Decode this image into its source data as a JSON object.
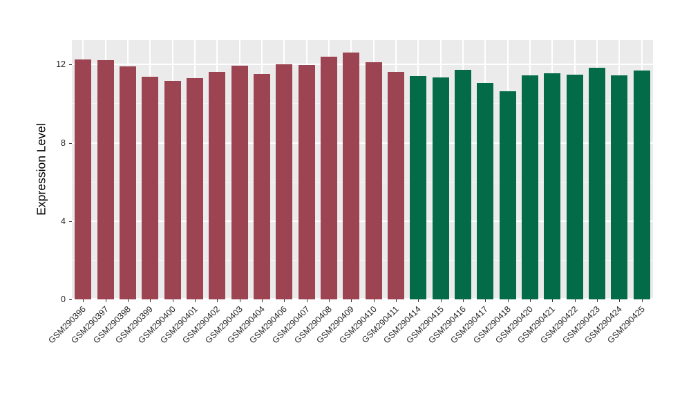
{
  "chart_data": {
    "type": "bar",
    "title": "",
    "xlabel": "",
    "ylabel": "Expression Level",
    "ylim": [
      0,
      13.25
    ],
    "yticks": [
      0,
      4,
      8,
      12
    ],
    "yticks_minor": [
      2,
      6,
      10
    ],
    "grid": "on",
    "legend_position": "none",
    "panel_background": "#EBEBEB",
    "grid_color": "#FFFFFF",
    "tick_color": "#333333",
    "group_colors": {
      "group1": "#9C4452",
      "group2": "#046B49"
    },
    "categories": [
      "GSM290396",
      "GSM290397",
      "GSM290398",
      "GSM290399",
      "GSM290400",
      "GSM290401",
      "GSM290402",
      "GSM290403",
      "GSM290404",
      "GSM290406",
      "GSM290407",
      "GSM290408",
      "GSM290409",
      "GSM290410",
      "GSM290411",
      "GSM290414",
      "GSM290415",
      "GSM290416",
      "GSM290417",
      "GSM290418",
      "GSM290420",
      "GSM290421",
      "GSM290422",
      "GSM290423",
      "GSM290424",
      "GSM290425"
    ],
    "values": [
      12.28,
      12.21,
      11.91,
      11.38,
      11.15,
      11.32,
      11.64,
      11.94,
      11.52,
      12.03,
      11.98,
      12.41,
      12.62,
      12.13,
      11.64,
      11.42,
      11.35,
      11.74,
      11.05,
      10.65,
      11.46,
      11.55,
      11.5,
      11.85,
      11.45,
      11.7
    ],
    "groups": [
      "group1",
      "group1",
      "group1",
      "group1",
      "group1",
      "group1",
      "group1",
      "group1",
      "group1",
      "group1",
      "group1",
      "group1",
      "group1",
      "group1",
      "group1",
      "group2",
      "group2",
      "group2",
      "group2",
      "group2",
      "group2",
      "group2",
      "group2",
      "group2",
      "group2",
      "group2"
    ]
  }
}
